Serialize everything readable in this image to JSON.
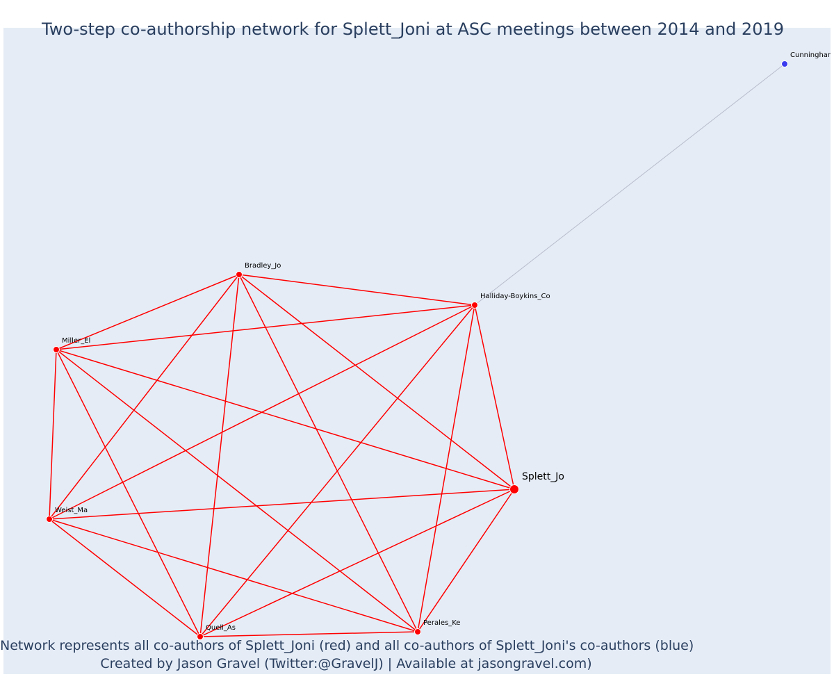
{
  "title": "Two-step co-authorship network for Splett_Joni at ASC meetings between 2014 and 2019",
  "caption_line1": "Network represents all co-authors of Splett_Joni (red) and all co-authors of Splett_Joni's co-authors (blue)",
  "caption_line2": "Created by Jason Gravel (Twitter:@GravelJ) | Available at jasongravel.com)",
  "colors": {
    "background": "#e5ecf6",
    "coauthor": "#ff0000",
    "second_step": "#3b3bef",
    "second_step_edge": "#b8bccb",
    "title_text": "#2a3f5f"
  },
  "nodes": [
    {
      "id": "splett",
      "label": "Splett_Jo",
      "group": "focal"
    },
    {
      "id": "bradley",
      "label": "Bradley_Jo",
      "group": "coauthor"
    },
    {
      "id": "halliday",
      "label": "Halliday-Boykins_Co",
      "group": "coauthor"
    },
    {
      "id": "miller",
      "label": "Miller_El",
      "group": "coauthor"
    },
    {
      "id": "weist",
      "label": "Weist_Ma",
      "group": "coauthor"
    },
    {
      "id": "quell",
      "label": "Quell_As",
      "group": "coauthor"
    },
    {
      "id": "perales",
      "label": "Perales_Ke",
      "group": "coauthor"
    },
    {
      "id": "cunningham",
      "label": "Cunningham",
      "group": "second_step"
    }
  ],
  "edges": [
    [
      "splett",
      "bradley"
    ],
    [
      "splett",
      "halliday"
    ],
    [
      "splett",
      "miller"
    ],
    [
      "splett",
      "weist"
    ],
    [
      "splett",
      "quell"
    ],
    [
      "splett",
      "perales"
    ],
    [
      "bradley",
      "halliday"
    ],
    [
      "bradley",
      "miller"
    ],
    [
      "bradley",
      "weist"
    ],
    [
      "bradley",
      "quell"
    ],
    [
      "bradley",
      "perales"
    ],
    [
      "halliday",
      "miller"
    ],
    [
      "halliday",
      "weist"
    ],
    [
      "halliday",
      "quell"
    ],
    [
      "halliday",
      "perales"
    ],
    [
      "miller",
      "weist"
    ],
    [
      "miller",
      "quell"
    ],
    [
      "miller",
      "perales"
    ],
    [
      "weist",
      "quell"
    ],
    [
      "weist",
      "perales"
    ],
    [
      "quell",
      "perales"
    ],
    [
      "halliday",
      "cunningham"
    ]
  ]
}
